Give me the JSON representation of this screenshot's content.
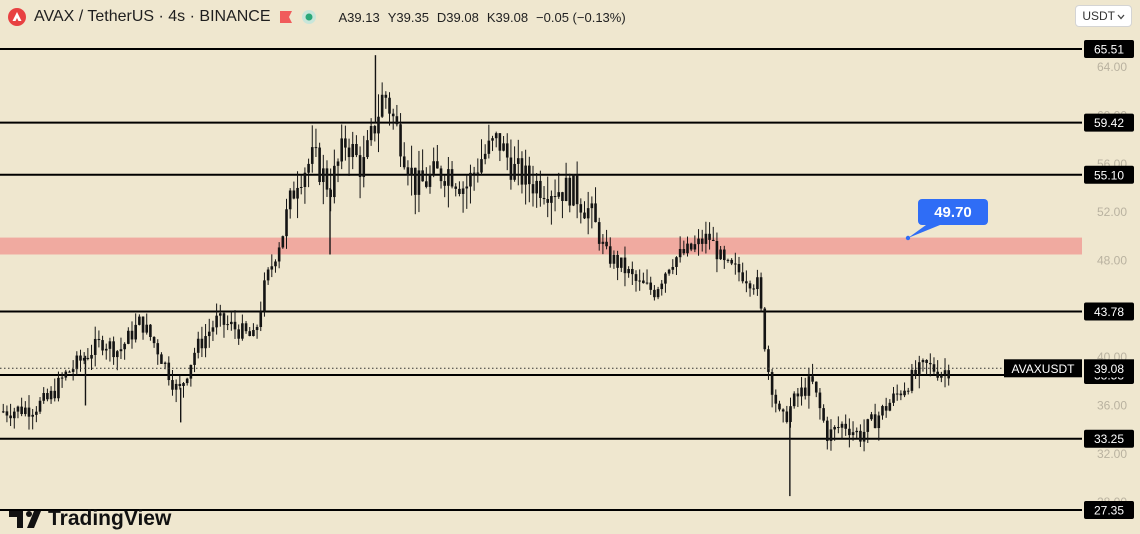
{
  "header": {
    "symbol": "AVAX / TetherUS · 4s · BINANCE",
    "open": "A39.13",
    "high": "Y39.35",
    "low": "D39.08",
    "close": "K39.08",
    "change": "−0.05 (−0.13%)"
  },
  "currency_button": "USDT",
  "brand": "TradingView",
  "colors": {
    "background": "#efe7cf",
    "zone": "#f0aaa0",
    "line": "#000000",
    "callout": "#2f6df6",
    "candle": "#141414"
  },
  "chart_data": {
    "type": "candlestick",
    "y_range": [
      27,
      67
    ],
    "y_ticks": [
      "64.00",
      "60.00",
      "56.00",
      "52.00",
      "48.00",
      "44.00",
      "40.00",
      "36.00",
      "32.00",
      "28.00"
    ],
    "levels": [
      {
        "value": 65.51,
        "label": "65.51"
      },
      {
        "value": 59.42,
        "label": "59.42"
      },
      {
        "value": 55.1,
        "label": "55.10"
      },
      {
        "value": 43.78,
        "label": "43.78"
      },
      {
        "value": 38.53,
        "label": "38.53"
      },
      {
        "value": 33.25,
        "label": "33.25"
      },
      {
        "value": 27.35,
        "label": "27.35"
      }
    ],
    "zone": {
      "low": 48.5,
      "high": 49.9
    },
    "callout": {
      "value": 49.7,
      "label": "49.70"
    },
    "last_price": {
      "value": 39.08,
      "label": "39.08",
      "symbol": "AVAXUSDT"
    },
    "close_path": [
      [
        0,
        35.5
      ],
      [
        0.03,
        35.8
      ],
      [
        0.045,
        36.5
      ],
      [
        0.06,
        38.5
      ],
      [
        0.08,
        40.2
      ],
      [
        0.095,
        41.3
      ],
      [
        0.11,
        40.5
      ],
      [
        0.13,
        43.0
      ],
      [
        0.145,
        40.8
      ],
      [
        0.165,
        37.0
      ],
      [
        0.18,
        40.5
      ],
      [
        0.2,
        43.0
      ],
      [
        0.215,
        42.5
      ],
      [
        0.235,
        41.5
      ],
      [
        0.245,
        46.0
      ],
      [
        0.26,
        50.0
      ],
      [
        0.275,
        55.0
      ],
      [
        0.29,
        56.5
      ],
      [
        0.305,
        54.0
      ],
      [
        0.32,
        58.0
      ],
      [
        0.335,
        55.5
      ],
      [
        0.355,
        62.0
      ],
      [
        0.37,
        58.0
      ],
      [
        0.385,
        54.0
      ],
      [
        0.4,
        55.0
      ],
      [
        0.415,
        55.5
      ],
      [
        0.43,
        54.0
      ],
      [
        0.445,
        56.5
      ],
      [
        0.46,
        58.0
      ],
      [
        0.475,
        55.5
      ],
      [
        0.49,
        54.5
      ],
      [
        0.51,
        54.0
      ],
      [
        0.53,
        53.8
      ],
      [
        0.545,
        52.0
      ],
      [
        0.56,
        48.5
      ],
      [
        0.575,
        47.5
      ],
      [
        0.59,
        46.0
      ],
      [
        0.605,
        45.5
      ],
      [
        0.62,
        48.0
      ],
      [
        0.64,
        49.0
      ],
      [
        0.655,
        50.0
      ],
      [
        0.67,
        47.5
      ],
      [
        0.685,
        47.0
      ],
      [
        0.7,
        46.0
      ],
      [
        0.71,
        39.0
      ],
      [
        0.722,
        34.5
      ],
      [
        0.735,
        36.5
      ],
      [
        0.75,
        38.0
      ],
      [
        0.765,
        33.5
      ],
      [
        0.78,
        34.5
      ],
      [
        0.795,
        33.5
      ],
      [
        0.81,
        35.0
      ],
      [
        0.825,
        36.5
      ],
      [
        0.84,
        38.0
      ],
      [
        0.855,
        39.3
      ],
      [
        0.87,
        38.8
      ],
      [
        0.88,
        39.1
      ]
    ],
    "spikes": [
      {
        "x": 0.079,
        "low": 36.0
      },
      {
        "x": 0.167,
        "low": 34.6
      },
      {
        "x": 0.305,
        "low": 48.5
      },
      {
        "x": 0.347,
        "high": 65.0
      },
      {
        "x": 0.73,
        "low": 28.5
      }
    ]
  }
}
